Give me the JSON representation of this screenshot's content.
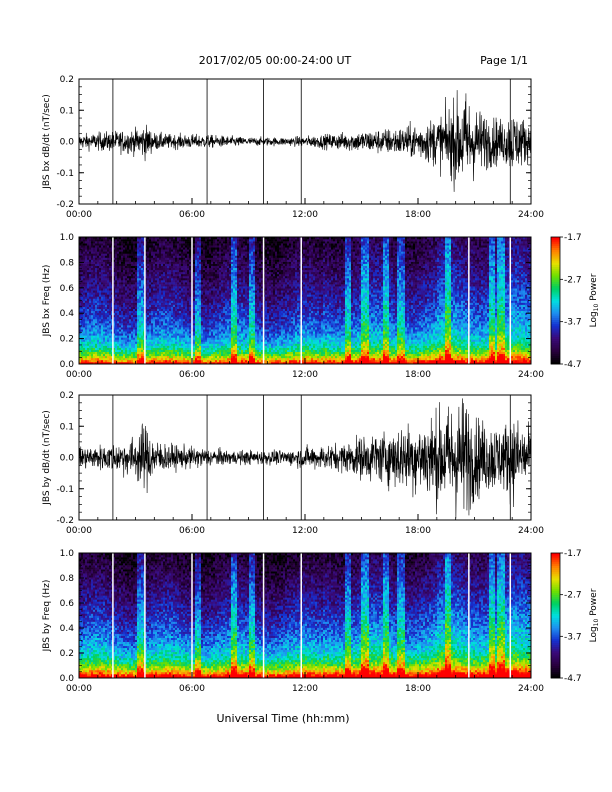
{
  "header": {
    "date_range": "2017/02/05  00:00-24:00 UT",
    "page": "Page 1/1"
  },
  "footer": {
    "xlabel": "Universal Time (hh:mm)"
  },
  "colors": {
    "trace": "#000000",
    "gap_marker": "#ffffff",
    "colormap": [
      "#000000",
      "#2a0040",
      "#3a0a7a",
      "#1530d0",
      "#1e8ff0",
      "#00e0e0",
      "#00d060",
      "#70e000",
      "#e8e000",
      "#ff8000",
      "#ff0000"
    ]
  },
  "chart_data": [
    {
      "type": "line",
      "ylabel": "JBS bx dB/dt (nT/sec)",
      "ylim": [
        -0.2,
        0.2
      ],
      "yticks": [
        "0.2",
        "0.1",
        "0.0",
        "-0.1",
        "-0.2"
      ],
      "xlim": [
        0,
        24
      ],
      "xticks": [
        "00:00",
        "06:00",
        "12:00",
        "18:00",
        "24:00"
      ],
      "gap_lines_hours": [
        1.8,
        6.8,
        9.8,
        11.8,
        22.9
      ],
      "envelope_hours": [
        0,
        1,
        2,
        3,
        3.5,
        4,
        5,
        6,
        7,
        8,
        9,
        10,
        11,
        12,
        13,
        14,
        15,
        16,
        17,
        18,
        19,
        19.5,
        20,
        20.5,
        21,
        21.5,
        22,
        22.5,
        23,
        23.5,
        24
      ],
      "envelope_amplitude": [
        0.02,
        0.025,
        0.03,
        0.035,
        0.05,
        0.025,
        0.02,
        0.02,
        0.018,
        0.015,
        0.012,
        0.012,
        0.012,
        0.015,
        0.02,
        0.025,
        0.03,
        0.035,
        0.04,
        0.05,
        0.07,
        0.09,
        0.12,
        0.14,
        0.1,
        0.08,
        0.07,
        0.06,
        0.09,
        0.07,
        0.05
      ]
    },
    {
      "type": "heatmap",
      "ylabel": "JBS bx Freq (Hz)",
      "ylim": [
        0.0,
        1.0
      ],
      "yticks": [
        "1.0",
        "0.8",
        "0.6",
        "0.4",
        "0.2",
        "0.0"
      ],
      "xlim": [
        0,
        24
      ],
      "xticks": [
        "00:00",
        "06:00",
        "12:00",
        "18:00",
        "24:00"
      ],
      "gap_lines_hours": [
        1.8,
        3.5,
        6.0,
        9.8,
        11.8,
        20.7,
        22.9
      ],
      "colorbar": {
        "label": "Log10 Power",
        "label_main": "Log",
        "label_sub": "10",
        "label_rest": " Power",
        "ticks": [
          "-1.7",
          "-2.7",
          "-3.7",
          "-4.7"
        ],
        "range": [
          -4.7,
          -1.7
        ]
      }
    },
    {
      "type": "line",
      "ylabel": "JBS by dB/dt (nT/sec)",
      "ylim": [
        -0.2,
        0.2
      ],
      "yticks": [
        "0.2",
        "0.1",
        "0.0",
        "-0.1",
        "-0.2"
      ],
      "xlim": [
        0,
        24
      ],
      "xticks": [
        "00:00",
        "06:00",
        "12:00",
        "18:00",
        "24:00"
      ],
      "gap_lines_hours": [
        1.8,
        6.8,
        9.8,
        11.8,
        22.9
      ],
      "envelope_hours": [
        0,
        1,
        2,
        3,
        3.5,
        4,
        5,
        6,
        7,
        8,
        9,
        10,
        11,
        12,
        13,
        14,
        15,
        16,
        17,
        18,
        19,
        19.5,
        20,
        20.5,
        21,
        21.5,
        22,
        22.5,
        23,
        23.5,
        24
      ],
      "envelope_amplitude": [
        0.03,
        0.035,
        0.04,
        0.06,
        0.1,
        0.05,
        0.035,
        0.03,
        0.025,
        0.02,
        0.02,
        0.02,
        0.02,
        0.03,
        0.035,
        0.04,
        0.06,
        0.07,
        0.09,
        0.1,
        0.13,
        0.14,
        0.16,
        0.18,
        0.12,
        0.1,
        0.1,
        0.09,
        0.12,
        0.1,
        0.08
      ]
    },
    {
      "type": "heatmap",
      "ylabel": "JBS by Freq (Hz)",
      "ylim": [
        0.0,
        1.0
      ],
      "yticks": [
        "1.0",
        "0.8",
        "0.6",
        "0.4",
        "0.2",
        "0.0"
      ],
      "xlim": [
        0,
        24
      ],
      "xticks": [
        "00:00",
        "06:00",
        "12:00",
        "18:00",
        "24:00"
      ],
      "gap_lines_hours": [
        1.8,
        3.5,
        6.0,
        9.8,
        11.8,
        20.7,
        22.9
      ],
      "colorbar": {
        "label": "Log10 Power",
        "label_main": "Log",
        "label_sub": "10",
        "label_rest": " Power",
        "ticks": [
          "-1.7",
          "-2.7",
          "-3.7",
          "-4.7"
        ],
        "range": [
          -4.7,
          -1.7
        ]
      }
    }
  ]
}
